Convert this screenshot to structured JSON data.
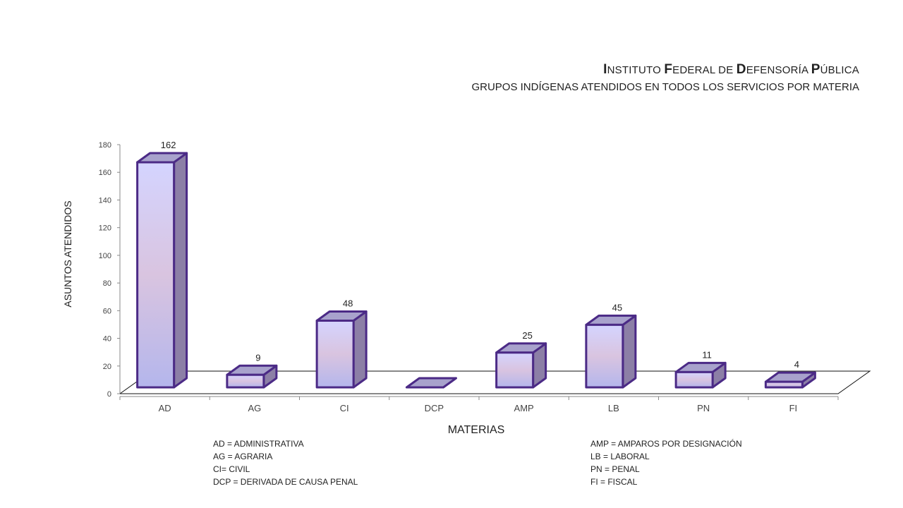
{
  "title": {
    "line1_segments": [
      {
        "text": "I",
        "big": true
      },
      {
        "text": "NSTITUTO ",
        "big": false
      },
      {
        "text": "F",
        "big": true
      },
      {
        "text": "EDERAL DE ",
        "big": false
      },
      {
        "text": "D",
        "big": true
      },
      {
        "text": "EFENSORÍA ",
        "big": false
      },
      {
        "text": "P",
        "big": true
      },
      {
        "text": "ÚBLICA",
        "big": false
      }
    ],
    "line2": "GRUPOS INDÍGENAS ATENDIDOS EN TODOS LOS SERVICIOS POR MATERIA"
  },
  "chart_data": {
    "type": "bar",
    "title": "INSTITUTO FEDERAL DE DEFENSORÍA PÚBLICA",
    "subtitle": "GRUPOS INDÍGENAS ATENDIDOS EN TODOS LOS SERVICIOS POR MATERIA",
    "categories": [
      "AD",
      "AG",
      "CI",
      "DCP",
      "AMP",
      "LB",
      "PN",
      "FI"
    ],
    "values": [
      162,
      9,
      48,
      0,
      25,
      45,
      11,
      4
    ],
    "data_labels": [
      "162",
      "9",
      "48",
      "",
      "25",
      "45",
      "11",
      "4"
    ],
    "xlabel": "MATERIAS",
    "ylabel": "ASUNTOS ATENDIDOS",
    "ylim": [
      0,
      180
    ],
    "yticks": [
      0,
      20,
      40,
      60,
      80,
      100,
      120,
      140,
      160,
      180
    ],
    "grid": false,
    "style": "3d-column",
    "colors": {
      "bar_top": "#d4d4ff",
      "bar_mid": "#d9c4e0",
      "bar_bottom": "#b4b6ec",
      "bar_side": "#8c7fa6",
      "bar_cap": "#a8a2cc",
      "bar_edge": "#4b2a86"
    }
  },
  "legend": {
    "left": [
      "AD = ADMINISTRATIVA",
      "AG = AGRARIA",
      "CI= CIVIL",
      "DCP =  DERIVADA DE CAUSA  PENAL"
    ],
    "right": [
      "AMP = AMPAROS POR DESIGNACIÓN",
      "LB = LABORAL",
      "PN = PENAL",
      "FI = FISCAL"
    ]
  }
}
